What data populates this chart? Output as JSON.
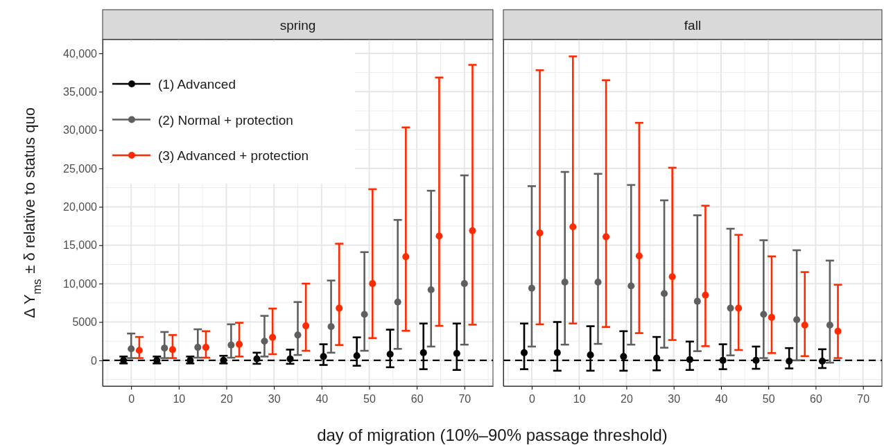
{
  "chart_data": [
    {
      "type": "scatter",
      "title": "spring",
      "xlabel": "day of migration (10%–90% passage threshold)",
      "ylabel": "Δ Y$_{ms}$ ± δ relative to status quo",
      "xlim": [
        -6,
        76
      ],
      "ylim": [
        -3350,
        41800
      ],
      "xticks": [
        0,
        10,
        20,
        30,
        40,
        50,
        60,
        70
      ],
      "yticks": [
        0,
        5000,
        {
          "value": 10000,
          "label": "10,000"
        },
        {
          "value": 15000,
          "label": "15,000"
        },
        {
          "value": 20000,
          "label": "20,000"
        },
        {
          "value": 25000,
          "label": "25,000"
        },
        {
          "value": 30000,
          "label": "30,000"
        },
        {
          "value": 35000,
          "label": "35,000"
        },
        {
          "value": 40000,
          "label": "40,000"
        }
      ],
      "grid": true,
      "legend": "top left",
      "marker": "circle",
      "ref_lines": [
        {
          "axis": "y",
          "value": 0,
          "line_style": "dashed",
          "color": "#000000"
        }
      ],
      "series": [
        {
          "name": "(1) Advanced",
          "color": "#000000",
          "x": [
            -1.6,
            5.4,
            12.4,
            19.4,
            26.4,
            33.4,
            40.4,
            47.4,
            54.4,
            61.4,
            68.4
          ],
          "values": [
            0,
            0,
            0,
            0,
            200,
            200,
            500,
            600,
            800,
            1000,
            900
          ],
          "errors": [
            [
              -400,
              500
            ],
            [
              -400,
              500
            ],
            [
              -400,
              500
            ],
            [
              -400,
              600
            ],
            [
              -450,
              1000
            ],
            [
              -450,
              1400
            ],
            [
              -600,
              2100
            ],
            [
              -700,
              3000
            ],
            [
              -900,
              4000
            ],
            [
              -1150,
              4800
            ],
            [
              -1250,
              4800
            ]
          ]
        },
        {
          "name": "(2) Normal + protection",
          "color": "#5f5f5f",
          "x": [
            0,
            7,
            14,
            21,
            28,
            35,
            42,
            49,
            56,
            63,
            70
          ],
          "values": [
            1500,
            1600,
            1700,
            2000,
            2500,
            3300,
            4400,
            6000,
            7600,
            9200,
            10000
          ],
          "errors": [
            [
              300,
              3500
            ],
            [
              300,
              3700
            ],
            [
              350,
              4050
            ],
            [
              350,
              4700
            ],
            [
              500,
              5800
            ],
            [
              700,
              7600
            ],
            [
              1000,
              10400
            ],
            [
              1250,
              14100
            ],
            [
              1500,
              18300
            ],
            [
              1800,
              22100
            ],
            [
              2050,
              24100
            ]
          ]
        },
        {
          "name": "(3) Advanced + protection",
          "color": "#ff2a00",
          "x": [
            1.7,
            8.7,
            15.7,
            22.7,
            29.7,
            36.7,
            43.7,
            50.7,
            57.7,
            64.7,
            71.7
          ],
          "values": [
            1300,
            1400,
            1700,
            2100,
            3000,
            4500,
            6800,
            10000,
            13500,
            16200,
            16900
          ],
          "errors": [
            [
              300,
              3050
            ],
            [
              300,
              3300
            ],
            [
              350,
              3800
            ],
            [
              500,
              4900
            ],
            [
              800,
              6750
            ],
            [
              1250,
              10000
            ],
            [
              2000,
              15200
            ],
            [
              2900,
              22300
            ],
            [
              3850,
              30350
            ],
            [
              4500,
              36850
            ],
            [
              4650,
              38500
            ]
          ]
        }
      ]
    },
    {
      "type": "scatter",
      "title": "fall",
      "xlim": [
        -6,
        74
      ],
      "ylim": [
        -3350,
        41800
      ],
      "xticks": [
        0,
        10,
        20,
        30,
        40,
        50,
        60,
        70
      ],
      "yticks": [
        0,
        5000,
        10000,
        15000,
        20000,
        25000,
        30000,
        35000,
        40000
      ],
      "tick_labels": "x",
      "grid": true,
      "marker": "circle",
      "ref_lines": [
        {
          "axis": "y",
          "value": 0,
          "line_style": "dashed",
          "color": "#000000"
        }
      ],
      "series": [
        {
          "color": "#000000",
          "x": [
            -1.6,
            5.4,
            12.4,
            19.4,
            26.4,
            33.4,
            40.4,
            47.4,
            54.4,
            61.4
          ],
          "values": [
            1000,
            1000,
            700,
            500,
            300,
            100,
            0,
            0,
            -100,
            -100
          ],
          "errors": [
            [
              -1150,
              4800
            ],
            [
              -1350,
              5000
            ],
            [
              -1350,
              4450
            ],
            [
              -1350,
              3800
            ],
            [
              -1300,
              3050
            ],
            [
              -1250,
              2450
            ],
            [
              -1150,
              2100
            ],
            [
              -1100,
              1800
            ],
            [
              -1050,
              1600
            ],
            [
              -1000,
              1450
            ]
          ]
        },
        {
          "color": "#5f5f5f",
          "x": [
            0,
            7,
            14,
            21,
            28,
            35,
            42,
            49,
            56,
            63
          ],
          "values": [
            9400,
            10200,
            10200,
            9700,
            8700,
            7700,
            6800,
            6000,
            5300,
            4600
          ],
          "errors": [
            [
              1800,
              22700
            ],
            [
              2050,
              24550
            ],
            [
              2150,
              24300
            ],
            [
              2050,
              22850
            ],
            [
              1650,
              20850
            ],
            [
              1200,
              18900
            ],
            [
              650,
              17150
            ],
            [
              300,
              15650
            ],
            [
              0,
              14350
            ],
            [
              -300,
              13000
            ]
          ]
        },
        {
          "color": "#ff2a00",
          "x": [
            1.7,
            8.7,
            15.7,
            22.7,
            29.7,
            36.7,
            43.7,
            50.7,
            57.7,
            64.7
          ],
          "values": [
            16600,
            17400,
            16100,
            13600,
            10900,
            8500,
            6800,
            5600,
            4600,
            3800
          ],
          "errors": [
            [
              4700,
              37800
            ],
            [
              4800,
              39600
            ],
            [
              4350,
              36500
            ],
            [
              3550,
              30950
            ],
            [
              2650,
              25100
            ],
            [
              1850,
              20150
            ],
            [
              1350,
              16350
            ],
            [
              950,
              13550
            ],
            [
              550,
              11500
            ],
            [
              300,
              9850
            ]
          ]
        }
      ]
    }
  ]
}
